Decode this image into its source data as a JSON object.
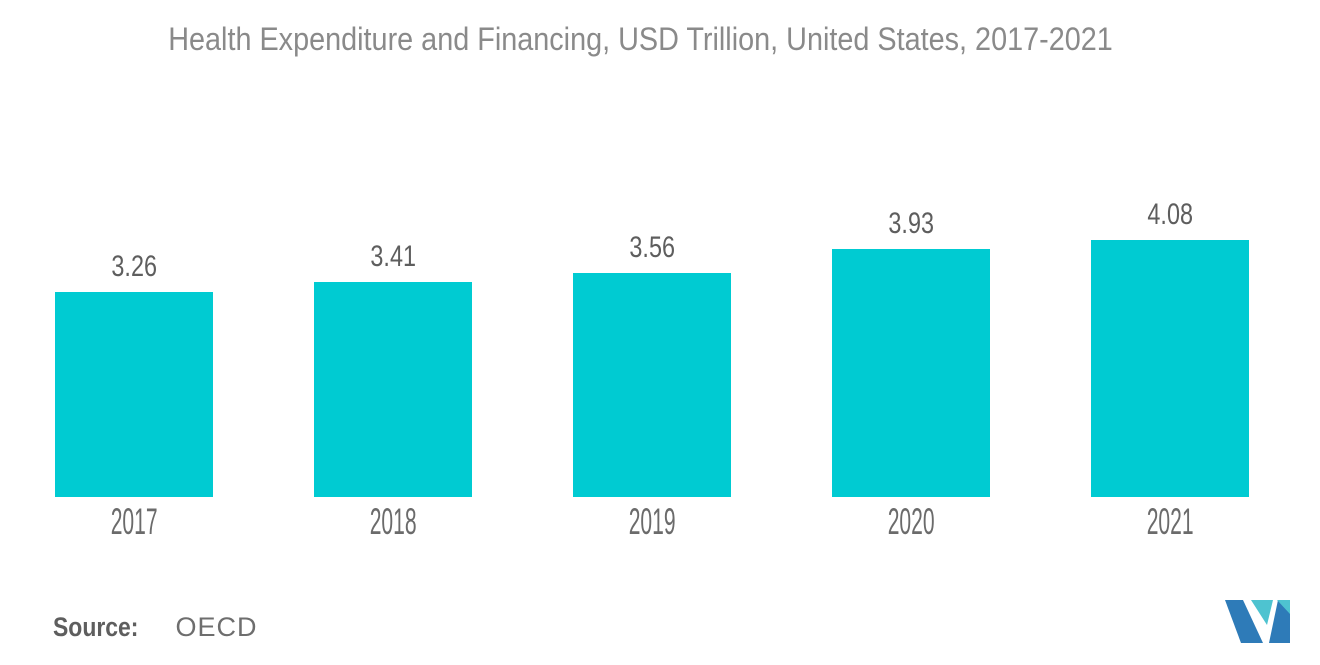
{
  "title": "Health Expenditure and Financing, USD Trillion, United States, 2017-2021",
  "chart_data": {
    "type": "bar",
    "categories": [
      "2017",
      "2018",
      "2019",
      "2020",
      "2021"
    ],
    "values": [
      3.26,
      3.41,
      3.56,
      3.93,
      4.08
    ],
    "series_name": "Health Expenditure and Financing (USD Trillion)",
    "title": "Health Expenditure and Financing, USD Trillion, United States, 2017-2021",
    "xlabel": "",
    "ylabel": "",
    "ylim": [
      0,
      4.6
    ],
    "value_labels": [
      "3.26",
      "3.41",
      "3.56",
      "3.93",
      "4.08"
    ],
    "axes_shown": false,
    "grid": false,
    "legend": false,
    "bar_color": "#00cbd2"
  },
  "source": {
    "label": "Source:",
    "value": "OECD"
  },
  "colors": {
    "background": "#ffffff",
    "bar": "#00cbd2",
    "title_text": "#8a8a8a",
    "value_label_text": "#5e5e5e",
    "axis_label_text": "#6b6b6b",
    "source_label_text": "#5e5e5e",
    "source_value_text": "#6e6e6e",
    "logo_blue": "#2e7bb8",
    "logo_teal": "#4ec3d0"
  }
}
